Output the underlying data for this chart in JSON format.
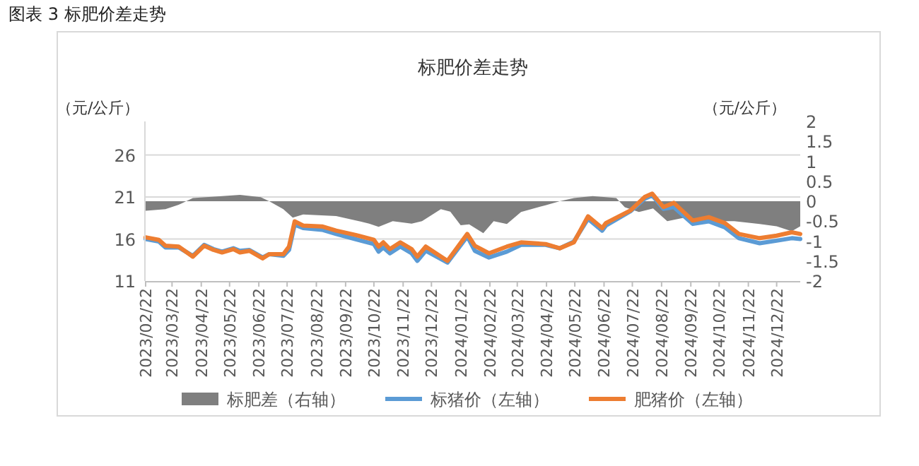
{
  "chart_data": {
    "type": "line",
    "title": "图表 3 标肥价差走势",
    "subtitle": "标肥价差走势",
    "ylabel": "（元/公斤）",
    "y2label": "（元/公斤）",
    "x": [
      "2023-02-22",
      "2023-03-08",
      "2023-03-15",
      "2023-03-29",
      "2023-04-13",
      "2023-04-25",
      "2023-05-05",
      "2023-05-14",
      "2023-05-26",
      "2023-06-02",
      "2023-06-12",
      "2023-06-26",
      "2023-07-03",
      "2023-07-18",
      "2023-07-24",
      "2023-07-30",
      "2023-08-08",
      "2023-08-28",
      "2023-09-12",
      "2023-10-02",
      "2023-10-22",
      "2023-10-27",
      "2023-11-01",
      "2023-11-08",
      "2023-11-19",
      "2023-12-01",
      "2023-12-07",
      "2023-12-16",
      "2024-01-08",
      "2024-01-29",
      "2024-02-06",
      "2024-02-21",
      "2024-03-11",
      "2024-03-26",
      "2024-04-21",
      "2024-05-06",
      "2024-05-21",
      "2024-06-05",
      "2024-06-20",
      "2024-06-24",
      "2024-07-20",
      "2024-08-04",
      "2024-08-12",
      "2024-08-24",
      "2024-09-04",
      "2024-09-24",
      "2024-10-11",
      "2024-10-28",
      "2024-11-12",
      "2024-12-04",
      "2024-12-22",
      "2025-01-07",
      "2025-01-16"
    ],
    "series": [
      {
        "name": "标肥差（右轴）",
        "type": "area",
        "axis": "y2",
        "color": "#7f7f7f",
        "x": [
          "2023-02-22",
          "2023-03-15",
          "2023-03-29",
          "2023-04-13",
          "2023-05-14",
          "2023-06-02",
          "2023-06-24",
          "2023-07-03",
          "2023-07-18",
          "2023-07-28",
          "2023-08-08",
          "2023-09-12",
          "2023-10-17",
          "2023-10-27",
          "2023-11-11",
          "2023-12-01",
          "2023-12-12",
          "2024-01-01",
          "2024-01-11",
          "2024-01-22",
          "2024-01-31",
          "2024-02-15",
          "2024-02-26",
          "2024-03-11",
          "2024-03-26",
          "2024-04-21",
          "2024-05-06",
          "2024-05-21",
          "2024-06-10",
          "2024-07-05",
          "2024-07-14",
          "2024-07-29",
          "2024-08-13",
          "2024-08-28",
          "2024-09-18",
          "2024-10-08",
          "2024-11-07",
          "2024-12-04",
          "2024-12-22",
          "2025-01-07",
          "2025-01-16"
        ],
        "values": [
          -0.24,
          -0.2,
          -0.09,
          0.08,
          0.13,
          0.16,
          0.1,
          0,
          -0.2,
          -0.41,
          -0.33,
          -0.37,
          -0.56,
          -0.64,
          -0.5,
          -0.56,
          -0.5,
          -0.2,
          -0.26,
          -0.6,
          -0.58,
          -0.8,
          -0.5,
          -0.57,
          -0.27,
          -0.1,
          0,
          0.08,
          0.13,
          0.08,
          -0.15,
          -0.27,
          -0.18,
          -0.5,
          -0.4,
          -0.5,
          -0.5,
          -0.57,
          -0.63,
          -0.75,
          -0.63
        ]
      },
      {
        "name": "标猪价（左轴）",
        "type": "line",
        "color": "#5b9bd5",
        "values": [
          16.0,
          15.7,
          15.0,
          15.0,
          14.0,
          15.3,
          14.8,
          14.5,
          14.9,
          14.6,
          14.7,
          13.8,
          14.2,
          14.0,
          14.7,
          17.7,
          17.3,
          17.1,
          16.6,
          16.0,
          15.4,
          14.5,
          15.0,
          14.3,
          15.1,
          14.3,
          13.4,
          14.6,
          13.2,
          16.3,
          14.6,
          13.8,
          14.5,
          15.3,
          15.3,
          14.9,
          15.7,
          18.4,
          17.0,
          17.6,
          19.3,
          20.8,
          21.2,
          19.6,
          19.8,
          17.8,
          18.1,
          17.4,
          16.1,
          15.5,
          15.8,
          16.1,
          16.0
        ]
      },
      {
        "name": "肥猪价（左轴）",
        "type": "line",
        "color": "#ed7d31",
        "values": [
          16.2,
          15.9,
          15.2,
          15.1,
          13.9,
          15.2,
          14.7,
          14.4,
          14.8,
          14.4,
          14.6,
          13.7,
          14.2,
          14.2,
          15.1,
          18.1,
          17.6,
          17.5,
          17.0,
          16.5,
          15.9,
          15.1,
          15.6,
          14.8,
          15.6,
          14.8,
          13.9,
          15.1,
          13.4,
          16.6,
          15.2,
          14.3,
          15.1,
          15.6,
          15.4,
          14.9,
          15.6,
          18.7,
          17.3,
          17.9,
          19.4,
          21.0,
          21.4,
          19.8,
          20.3,
          18.2,
          18.6,
          17.9,
          16.6,
          16.1,
          16.4,
          16.8,
          16.6
        ]
      }
    ],
    "xlim": [
      "2023-02-22",
      "2025-01-16"
    ],
    "xticks": [
      {
        "value": "2023-02-22",
        "label": "2023/02/22"
      },
      {
        "value": "2023-03-22",
        "label": "2023/03/22"
      },
      {
        "value": "2023-04-22",
        "label": "2023/04/22"
      },
      {
        "value": "2023-05-22",
        "label": "2023/05/22"
      },
      {
        "value": "2023-06-22",
        "label": "2023/06/22"
      },
      {
        "value": "2023-07-22",
        "label": "2023/07/22"
      },
      {
        "value": "2023-08-22",
        "label": "2023/08/22"
      },
      {
        "value": "2023-09-22",
        "label": "2023/09/22"
      },
      {
        "value": "2023-10-22",
        "label": "2023/10/22"
      },
      {
        "value": "2023-11-22",
        "label": "2023/11/22"
      },
      {
        "value": "2023-12-22",
        "label": "2023/12/22"
      },
      {
        "value": "2024-01-22",
        "label": "2024/01/22"
      },
      {
        "value": "2024-02-22",
        "label": "2024/02/22"
      },
      {
        "value": "2024-03-22",
        "label": "2024/03/22"
      },
      {
        "value": "2024-04-22",
        "label": "2024/04/22"
      },
      {
        "value": "2024-05-22",
        "label": "2024/05/22"
      },
      {
        "value": "2024-06-22",
        "label": "2024/06/22"
      },
      {
        "value": "2024-07-22",
        "label": "2024/07/22"
      },
      {
        "value": "2024-08-22",
        "label": "2024/08/22"
      },
      {
        "value": "2024-09-22",
        "label": "2024/09/22"
      },
      {
        "value": "2024-10-22",
        "label": "2024/10/22"
      },
      {
        "value": "2024-11-22",
        "label": "2024/11/22"
      },
      {
        "value": "2024-12-22",
        "label": "2024/12/22"
      }
    ],
    "ylim": [
      11,
      30
    ],
    "yticks": [
      11,
      16,
      21,
      26
    ],
    "y2lim": [
      -2,
      2
    ],
    "y2ticks": [
      -2,
      -1.5,
      -1,
      -0.5,
      0,
      0.5,
      1,
      1.5,
      2
    ],
    "grid": "y",
    "legend": "bottom"
  }
}
